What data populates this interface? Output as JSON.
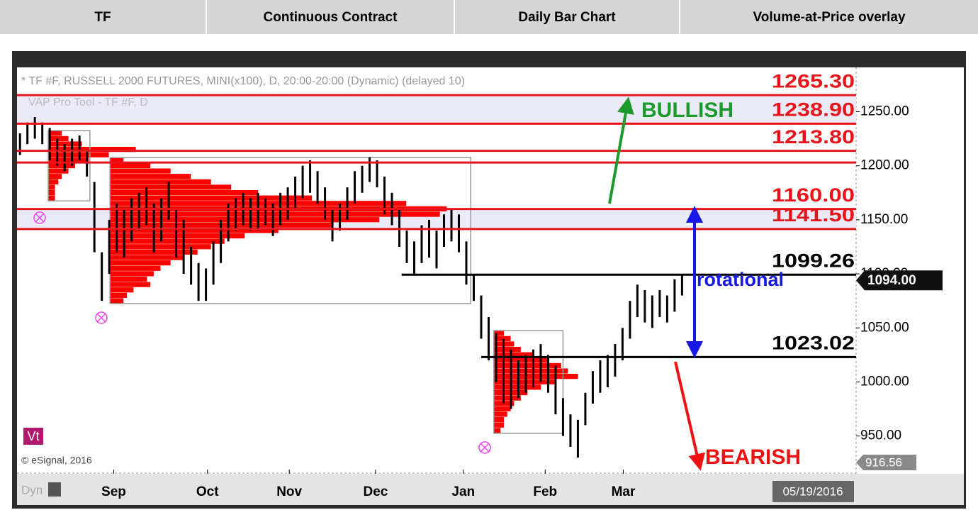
{
  "header": {
    "tabs": [
      "TF",
      "Continuous Contract",
      "Daily Bar Chart",
      "Volume-at-Price overlay"
    ]
  },
  "chart_data": {
    "type": "hilo",
    "title": "* TF #F, RUSSELL 2000 FUTURES, MINI(x100), D, 20:00-20:00 (Dynamic) (delayed 10)",
    "subtitle": "VAP Pro Tool - TF #F, D",
    "watermark": "© eSignal, 2016",
    "badge": "Vt",
    "footer": "Dyn",
    "date": "05/19/2016",
    "color": "#000000",
    "high": [
      1230,
      1240,
      1245,
      1240,
      1235,
      1225,
      1220,
      1225,
      1228,
      1215,
      1185,
      1120,
      1150,
      1165,
      1160,
      1170,
      1175,
      1180,
      1165,
      1170,
      1185,
      1160,
      1150,
      1125,
      1110,
      1105,
      1130,
      1150,
      1165,
      1170,
      1175,
      1170,
      1175,
      1170,
      1165,
      1175,
      1180,
      1190,
      1200,
      1205,
      1195,
      1180,
      1160,
      1165,
      1180,
      1195,
      1200,
      1208,
      1205,
      1190,
      1175,
      1160,
      1140,
      1130,
      1145,
      1150,
      1140,
      1155,
      1160,
      1155,
      1130,
      1100,
      1080,
      1060,
      1045,
      1040,
      1030,
      1020,
      1025,
      1030,
      1035,
      1025,
      1015,
      985,
      970,
      965,
      990,
      1010,
      1020,
      1025,
      1035,
      1050,
      1075,
      1090,
      1085,
      1080,
      1085,
      1080,
      1095,
      1100
    ],
    "low": [
      1210,
      1220,
      1225,
      1220,
      1205,
      1200,
      1195,
      1200,
      1205,
      1190,
      1120,
      1075,
      1100,
      1120,
      1115,
      1130,
      1140,
      1145,
      1120,
      1130,
      1150,
      1115,
      1100,
      1090,
      1075,
      1075,
      1090,
      1110,
      1130,
      1140,
      1145,
      1140,
      1140,
      1145,
      1135,
      1145,
      1150,
      1160,
      1170,
      1175,
      1165,
      1150,
      1130,
      1140,
      1150,
      1165,
      1175,
      1185,
      1180,
      1155,
      1145,
      1125,
      1110,
      1100,
      1110,
      1115,
      1105,
      1125,
      1130,
      1120,
      1090,
      1075,
      1040,
      1020,
      1000,
      980,
      975,
      985,
      990,
      995,
      1000,
      990,
      970,
      950,
      940,
      930,
      960,
      980,
      990,
      995,
      1005,
      1020,
      1040,
      1060,
      1055,
      1050,
      1060,
      1055,
      1065,
      1080
    ],
    "xlim": [
      -0.4,
      112.4
    ],
    "xticks": [
      {
        "value": 12.6,
        "label": "Sep"
      },
      {
        "value": 25.2,
        "label": "Oct"
      },
      {
        "value": 36.2,
        "label": "Nov"
      },
      {
        "value": 47.8,
        "label": "Dec"
      },
      {
        "value": 59.6,
        "label": "Jan"
      },
      {
        "value": 70.6,
        "label": "Feb"
      },
      {
        "value": 81.1,
        "label": "Mar"
      }
    ],
    "ylim": [
      915,
      1291
    ],
    "yticks": [
      {
        "value": 950,
        "label": "950.00"
      },
      {
        "value": 1000,
        "label": "1000.00"
      },
      {
        "value": 1050,
        "label": "1050.00"
      },
      {
        "value": 1100,
        "label": "1100.00"
      },
      {
        "value": 1150,
        "label": "1150.00"
      },
      {
        "value": 1200,
        "label": "1200.00"
      },
      {
        "value": 1250,
        "label": "1250.00"
      }
    ],
    "band_color": "#ebebf8",
    "bands": [
      {
        "from": 1238.9,
        "to": 1265.3
      },
      {
        "from": 1141.5,
        "to": 1160
      }
    ],
    "levels": [
      {
        "value": 1265.3,
        "label": "1265.30",
        "color": "#e8141b"
      },
      {
        "value": 1238.9,
        "label": "1238.90",
        "color": "#e8141b"
      },
      {
        "value": 1213.8,
        "label": "1213.80",
        "color": "#e8141b"
      },
      {
        "value": 1203,
        "color": "#e8141b"
      },
      {
        "value": 1160,
        "label": "1160.00",
        "color": "#e8141b"
      },
      {
        "value": 1141.5,
        "label": "1141.50",
        "color": "#e8141b"
      },
      {
        "value": 1099.26,
        "label": "1099.26",
        "color": "#000000",
        "start": 51.3
      },
      {
        "value": 1023.02,
        "label": "1023.02",
        "color": "#000000",
        "start": 62
      }
    ],
    "profile_color": "#ff0000",
    "profiles": [
      {
        "start": 3.8,
        "end": 9.4,
        "levels": [
          1230,
          1225,
          1220,
          1215,
          1210,
          1205,
          1200,
          1195,
          1190,
          1185,
          1180,
          1175,
          1170
        ],
        "volumes": [
          4,
          6,
          10,
          26,
          18,
          12,
          8,
          6,
          4,
          3,
          2,
          2,
          2
        ]
      },
      {
        "start": 12.1,
        "end": 60.6,
        "levels": [
          1205,
          1200,
          1195,
          1190,
          1185,
          1180,
          1175,
          1170,
          1165,
          1160,
          1155,
          1150,
          1145,
          1140,
          1135,
          1130,
          1125,
          1120,
          1115,
          1110,
          1105,
          1100,
          1095,
          1090,
          1085,
          1080,
          1075
        ],
        "volumes": [
          4,
          12,
          18,
          24,
          30,
          36,
          44,
          60,
          88,
          100,
          98,
          80,
          66,
          50,
          40,
          34,
          30,
          26,
          22,
          18,
          15,
          13,
          11,
          12,
          7,
          5,
          4
        ]
      },
      {
        "start": 63.7,
        "end": 73.0,
        "levels": [
          1045,
          1040,
          1035,
          1030,
          1025,
          1020,
          1015,
          1010,
          1005,
          1000,
          995,
          990,
          985,
          980,
          975,
          970,
          965,
          960,
          955
        ],
        "volumes": [
          3,
          5,
          6,
          8,
          12,
          16,
          20,
          22,
          25,
          18,
          14,
          10,
          8,
          6,
          5,
          4,
          3,
          3,
          2
        ]
      }
    ],
    "last": {
      "value": 1094,
      "label": "1094.00"
    },
    "low_marker": {
      "value": 916.56,
      "label": "916.56"
    },
    "annotations": [
      {
        "text": "BULLISH",
        "color": "#1c9a2c"
      },
      {
        "text": "rotational",
        "color": "#1818e6"
      },
      {
        "text": "BEARISH",
        "color": "#ee1111"
      }
    ]
  }
}
